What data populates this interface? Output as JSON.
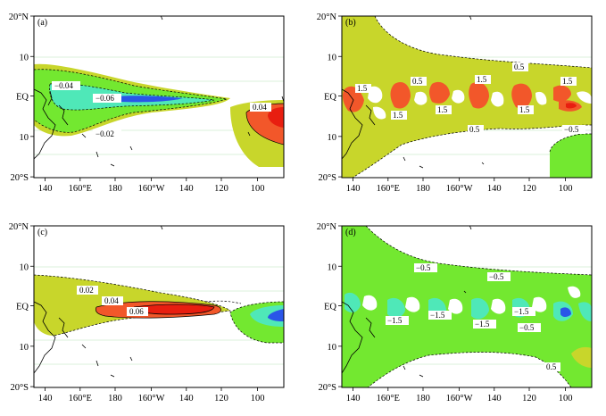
{
  "chart_data": [
    {
      "type": "heatmap",
      "panel": "(a)",
      "x_ticks": [
        "140",
        "160°E",
        "180",
        "160°W",
        "140",
        "120",
        "100"
      ],
      "y_ticks": [
        "20°N",
        "10",
        "EQ",
        "10",
        "20°S"
      ],
      "contour_labels": [
        "−0.04",
        "−0.06",
        "−0.02",
        "0.04"
      ],
      "colors": {
        "yellow": "#c8d62b",
        "green": "#73e830",
        "cyan": "#4fe8b8",
        "blue": "#2a55e8",
        "orange": "#f2572a",
        "red": "#e81e10"
      }
    },
    {
      "type": "heatmap",
      "panel": "(b)",
      "x_ticks": [
        "140",
        "160°E",
        "180",
        "160°W",
        "140",
        "120",
        "100"
      ],
      "y_ticks": [
        "20°N",
        "10",
        "EQ",
        "10",
        "20°S"
      ],
      "contour_labels": [
        "1.5",
        "0.5",
        "1.5",
        "1.5",
        "1.5",
        "1.5",
        "1.5",
        "0.5",
        "0.5",
        "1.5",
        "−0.5"
      ]
    },
    {
      "type": "heatmap",
      "panel": "(c)",
      "x_ticks": [
        "140",
        "160°E",
        "180",
        "160°W",
        "140",
        "120",
        "100"
      ],
      "y_ticks": [
        "20°N",
        "10",
        "EQ",
        "10",
        "20°S"
      ],
      "contour_labels": [
        "0.02",
        "0.04",
        "0.06"
      ]
    },
    {
      "type": "heatmap",
      "panel": "(d)",
      "x_ticks": [
        "140",
        "160°E",
        "180",
        "160°W",
        "140",
        "120",
        "100"
      ],
      "y_ticks": [
        "20°N",
        "10",
        "EQ",
        "10",
        "20°S"
      ],
      "contour_labels": [
        "−0.5",
        "−0.5",
        "−1.5",
        "−1.5",
        "−1.5",
        "−1.5",
        "−0.5",
        "0.5"
      ]
    }
  ]
}
